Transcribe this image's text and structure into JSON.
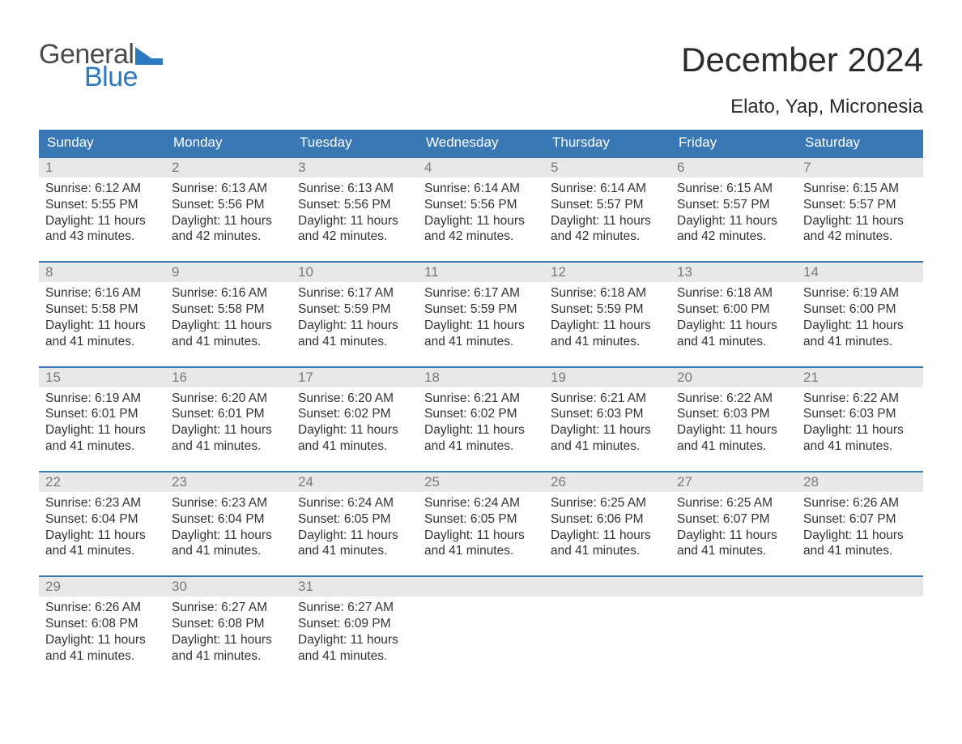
{
  "logo": {
    "word1": "General",
    "word2": "Blue",
    "text_color_1": "#4a4a4a",
    "text_color_2": "#2d79bf",
    "shape_color": "#2d79bf"
  },
  "title": "December 2024",
  "location": "Elato, Yap, Micronesia",
  "colors": {
    "header_bg": "#3a78b5",
    "header_text": "#ffffff",
    "daynum_bg": "#e8e8e8",
    "daynum_text": "#7a7a7a",
    "week_border": "#3a78b5",
    "body_text": "#333333",
    "page_bg": "#ffffff"
  },
  "typography": {
    "title_size": 42,
    "location_size": 24,
    "header_size": 17,
    "daynum_size": 17,
    "cell_size": 15.5
  },
  "day_names": [
    "Sunday",
    "Monday",
    "Tuesday",
    "Wednesday",
    "Thursday",
    "Friday",
    "Saturday"
  ],
  "weeks": [
    {
      "nums": [
        "1",
        "2",
        "3",
        "4",
        "5",
        "6",
        "7"
      ],
      "cells": [
        {
          "sunrise": "Sunrise: 6:12 AM",
          "sunset": "Sunset: 5:55 PM",
          "d1": "Daylight: 11 hours",
          "d2": "and 43 minutes."
        },
        {
          "sunrise": "Sunrise: 6:13 AM",
          "sunset": "Sunset: 5:56 PM",
          "d1": "Daylight: 11 hours",
          "d2": "and 42 minutes."
        },
        {
          "sunrise": "Sunrise: 6:13 AM",
          "sunset": "Sunset: 5:56 PM",
          "d1": "Daylight: 11 hours",
          "d2": "and 42 minutes."
        },
        {
          "sunrise": "Sunrise: 6:14 AM",
          "sunset": "Sunset: 5:56 PM",
          "d1": "Daylight: 11 hours",
          "d2": "and 42 minutes."
        },
        {
          "sunrise": "Sunrise: 6:14 AM",
          "sunset": "Sunset: 5:57 PM",
          "d1": "Daylight: 11 hours",
          "d2": "and 42 minutes."
        },
        {
          "sunrise": "Sunrise: 6:15 AM",
          "sunset": "Sunset: 5:57 PM",
          "d1": "Daylight: 11 hours",
          "d2": "and 42 minutes."
        },
        {
          "sunrise": "Sunrise: 6:15 AM",
          "sunset": "Sunset: 5:57 PM",
          "d1": "Daylight: 11 hours",
          "d2": "and 42 minutes."
        }
      ]
    },
    {
      "nums": [
        "8",
        "9",
        "10",
        "11",
        "12",
        "13",
        "14"
      ],
      "cells": [
        {
          "sunrise": "Sunrise: 6:16 AM",
          "sunset": "Sunset: 5:58 PM",
          "d1": "Daylight: 11 hours",
          "d2": "and 41 minutes."
        },
        {
          "sunrise": "Sunrise: 6:16 AM",
          "sunset": "Sunset: 5:58 PM",
          "d1": "Daylight: 11 hours",
          "d2": "and 41 minutes."
        },
        {
          "sunrise": "Sunrise: 6:17 AM",
          "sunset": "Sunset: 5:59 PM",
          "d1": "Daylight: 11 hours",
          "d2": "and 41 minutes."
        },
        {
          "sunrise": "Sunrise: 6:17 AM",
          "sunset": "Sunset: 5:59 PM",
          "d1": "Daylight: 11 hours",
          "d2": "and 41 minutes."
        },
        {
          "sunrise": "Sunrise: 6:18 AM",
          "sunset": "Sunset: 5:59 PM",
          "d1": "Daylight: 11 hours",
          "d2": "and 41 minutes."
        },
        {
          "sunrise": "Sunrise: 6:18 AM",
          "sunset": "Sunset: 6:00 PM",
          "d1": "Daylight: 11 hours",
          "d2": "and 41 minutes."
        },
        {
          "sunrise": "Sunrise: 6:19 AM",
          "sunset": "Sunset: 6:00 PM",
          "d1": "Daylight: 11 hours",
          "d2": "and 41 minutes."
        }
      ]
    },
    {
      "nums": [
        "15",
        "16",
        "17",
        "18",
        "19",
        "20",
        "21"
      ],
      "cells": [
        {
          "sunrise": "Sunrise: 6:19 AM",
          "sunset": "Sunset: 6:01 PM",
          "d1": "Daylight: 11 hours",
          "d2": "and 41 minutes."
        },
        {
          "sunrise": "Sunrise: 6:20 AM",
          "sunset": "Sunset: 6:01 PM",
          "d1": "Daylight: 11 hours",
          "d2": "and 41 minutes."
        },
        {
          "sunrise": "Sunrise: 6:20 AM",
          "sunset": "Sunset: 6:02 PM",
          "d1": "Daylight: 11 hours",
          "d2": "and 41 minutes."
        },
        {
          "sunrise": "Sunrise: 6:21 AM",
          "sunset": "Sunset: 6:02 PM",
          "d1": "Daylight: 11 hours",
          "d2": "and 41 minutes."
        },
        {
          "sunrise": "Sunrise: 6:21 AM",
          "sunset": "Sunset: 6:03 PM",
          "d1": "Daylight: 11 hours",
          "d2": "and 41 minutes."
        },
        {
          "sunrise": "Sunrise: 6:22 AM",
          "sunset": "Sunset: 6:03 PM",
          "d1": "Daylight: 11 hours",
          "d2": "and 41 minutes."
        },
        {
          "sunrise": "Sunrise: 6:22 AM",
          "sunset": "Sunset: 6:03 PM",
          "d1": "Daylight: 11 hours",
          "d2": "and 41 minutes."
        }
      ]
    },
    {
      "nums": [
        "22",
        "23",
        "24",
        "25",
        "26",
        "27",
        "28"
      ],
      "cells": [
        {
          "sunrise": "Sunrise: 6:23 AM",
          "sunset": "Sunset: 6:04 PM",
          "d1": "Daylight: 11 hours",
          "d2": "and 41 minutes."
        },
        {
          "sunrise": "Sunrise: 6:23 AM",
          "sunset": "Sunset: 6:04 PM",
          "d1": "Daylight: 11 hours",
          "d2": "and 41 minutes."
        },
        {
          "sunrise": "Sunrise: 6:24 AM",
          "sunset": "Sunset: 6:05 PM",
          "d1": "Daylight: 11 hours",
          "d2": "and 41 minutes."
        },
        {
          "sunrise": "Sunrise: 6:24 AM",
          "sunset": "Sunset: 6:05 PM",
          "d1": "Daylight: 11 hours",
          "d2": "and 41 minutes."
        },
        {
          "sunrise": "Sunrise: 6:25 AM",
          "sunset": "Sunset: 6:06 PM",
          "d1": "Daylight: 11 hours",
          "d2": "and 41 minutes."
        },
        {
          "sunrise": "Sunrise: 6:25 AM",
          "sunset": "Sunset: 6:07 PM",
          "d1": "Daylight: 11 hours",
          "d2": "and 41 minutes."
        },
        {
          "sunrise": "Sunrise: 6:26 AM",
          "sunset": "Sunset: 6:07 PM",
          "d1": "Daylight: 11 hours",
          "d2": "and 41 minutes."
        }
      ]
    },
    {
      "nums": [
        "29",
        "30",
        "31",
        "",
        "",
        "",
        ""
      ],
      "cells": [
        {
          "sunrise": "Sunrise: 6:26 AM",
          "sunset": "Sunset: 6:08 PM",
          "d1": "Daylight: 11 hours",
          "d2": "and 41 minutes."
        },
        {
          "sunrise": "Sunrise: 6:27 AM",
          "sunset": "Sunset: 6:08 PM",
          "d1": "Daylight: 11 hours",
          "d2": "and 41 minutes."
        },
        {
          "sunrise": "Sunrise: 6:27 AM",
          "sunset": "Sunset: 6:09 PM",
          "d1": "Daylight: 11 hours",
          "d2": "and 41 minutes."
        },
        {
          "sunrise": "",
          "sunset": "",
          "d1": "",
          "d2": ""
        },
        {
          "sunrise": "",
          "sunset": "",
          "d1": "",
          "d2": ""
        },
        {
          "sunrise": "",
          "sunset": "",
          "d1": "",
          "d2": ""
        },
        {
          "sunrise": "",
          "sunset": "",
          "d1": "",
          "d2": ""
        }
      ]
    }
  ]
}
